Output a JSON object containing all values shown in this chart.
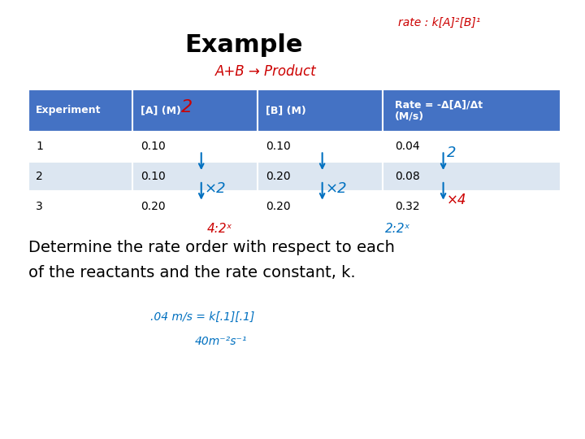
{
  "title": "Example",
  "col_headers": [
    "Experiment",
    "[A] (M)",
    "[B] (M)",
    "Rate = -Δ[A]/Δt\n(M/s)"
  ],
  "rows": [
    [
      "1",
      "0.10",
      "0.10",
      "0.04"
    ],
    [
      "2",
      "0.10",
      "0.20",
      "0.08"
    ],
    [
      "3",
      "0.20",
      "0.20",
      "0.32"
    ]
  ],
  "header_bg": "#4472C4",
  "header_fg": "white",
  "row_bg_odd": "#ffffff",
  "row_bg_even": "#dce6f1",
  "row_fg": "#000000",
  "body_text": "Determine the rate order with respect to each\nof the reactants and the rate constant, k.",
  "background_color": "#ffffff",
  "title_fontsize": 22,
  "body_fontsize": 14,
  "table_header_fontsize": 9,
  "table_body_fontsize": 10
}
